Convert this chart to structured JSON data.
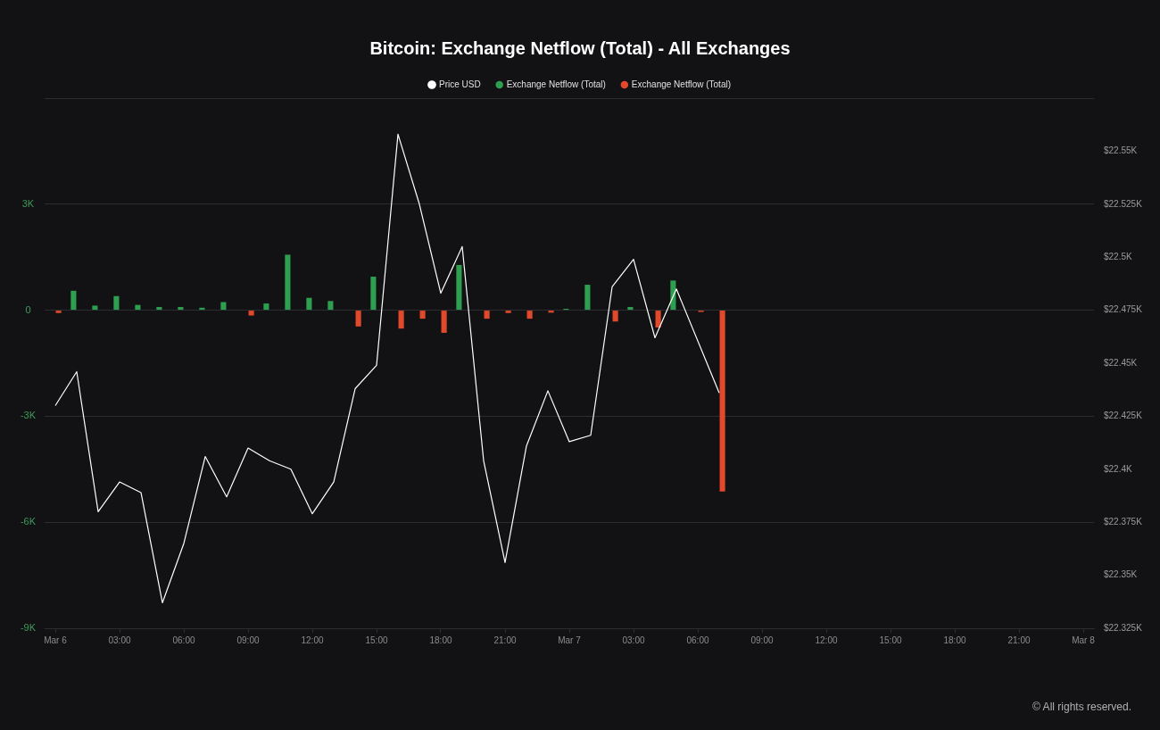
{
  "chart_data": {
    "type": "bar",
    "title": "Bitcoin: Exchange Netflow (Total) - All Exchanges",
    "x": [
      "--03-06T00:00",
      "--03-06T01:00",
      "--03-06T02:00",
      "--03-06T03:00",
      "--03-06T04:00",
      "--03-06T05:00",
      "--03-06T06:00",
      "--03-06T07:00",
      "--03-06T08:00",
      "--03-06T09:00",
      "--03-06T10:00",
      "--03-06T11:00",
      "--03-06T12:00",
      "--03-06T13:00",
      "--03-06T14:00",
      "--03-06T15:00",
      "--03-06T16:00",
      "--03-06T17:00",
      "--03-06T18:00",
      "--03-06T19:00",
      "--03-06T20:00",
      "--03-06T21:00",
      "--03-06T22:00",
      "--03-06T23:00",
      "--03-07T00:00",
      "--03-07T01:00",
      "--03-07T02:00",
      "--03-07T03:00",
      "--03-07T04:00",
      "--03-07T05:00",
      "--03-07T06:00",
      "--03-07T07:00"
    ],
    "series": [
      {
        "name": "Price USD",
        "type": "line",
        "axis": "y2",
        "color": "#ffffff",
        "x": [
          "--03-06T00:00",
          "--03-06T01:00",
          "--03-06T02:00",
          "--03-06T03:00",
          "--03-06T04:00",
          "--03-06T05:00",
          "--03-06T06:00",
          "--03-06T07:00",
          "--03-06T08:00",
          "--03-06T09:00",
          "--03-06T10:00",
          "--03-06T11:00",
          "--03-06T12:00",
          "--03-06T13:00",
          "--03-06T14:00",
          "--03-06T15:00",
          "--03-06T16:00",
          "--03-06T17:00",
          "--03-06T18:00",
          "--03-06T19:00",
          "--03-06T20:00",
          "--03-06T21:00",
          "--03-06T22:00",
          "--03-06T23:00",
          "--03-07T00:00",
          "--03-07T01:00",
          "--03-07T02:00",
          "--03-07T03:00",
          "--03-07T04:00",
          "--03-07T05:00",
          "--03-07T07:00"
        ],
        "values": [
          22430,
          22446,
          22380,
          22394,
          22389,
          22337,
          22365,
          22406,
          22387,
          22410,
          22404,
          22400,
          22379,
          22394,
          22438,
          22449,
          22558,
          22525,
          22483,
          22505,
          22404,
          22356,
          22411,
          22437,
          22413,
          22416,
          22486,
          22499,
          22462,
          22485,
          22436
        ]
      },
      {
        "name": "Exchange Netflow (Total)",
        "color": "#2e9f4f",
        "values": [
          null,
          550,
          130,
          400,
          150,
          90,
          90,
          70,
          230,
          null,
          190,
          1570,
          350,
          260,
          null,
          950,
          null,
          null,
          null,
          1280,
          null,
          null,
          null,
          null,
          40,
          720,
          null,
          90,
          null,
          840,
          null,
          null
        ]
      },
      {
        "name": "Exchange Netflow (Total)",
        "color": "#e2492a",
        "values": [
          -80,
          null,
          null,
          null,
          null,
          null,
          null,
          null,
          null,
          -150,
          null,
          null,
          null,
          null,
          -460,
          null,
          -520,
          -240,
          -640,
          null,
          -240,
          -80,
          -240,
          -70,
          null,
          null,
          -320,
          null,
          -490,
          null,
          -50,
          -5130
        ]
      }
    ],
    "xlim": [
      "--03-05T23:30",
      "--03-08T00:30"
    ],
    "xticks": [
      {
        "value": "--03-06T00:00",
        "label": "Mar 6"
      },
      {
        "value": "--03-06T03:00",
        "label": "03:00"
      },
      {
        "value": "--03-06T06:00",
        "label": "06:00"
      },
      {
        "value": "--03-06T09:00",
        "label": "09:00"
      },
      {
        "value": "--03-06T12:00",
        "label": "12:00"
      },
      {
        "value": "--03-06T15:00",
        "label": "15:00"
      },
      {
        "value": "--03-06T18:00",
        "label": "18:00"
      },
      {
        "value": "--03-06T21:00",
        "label": "21:00"
      },
      {
        "value": "--03-07T00:00",
        "label": "Mar 7"
      },
      {
        "value": "--03-07T03:00",
        "label": "03:00"
      },
      {
        "value": "--03-07T06:00",
        "label": "06:00"
      },
      {
        "value": "--03-07T09:00",
        "label": "09:00"
      },
      {
        "value": "--03-07T12:00",
        "label": "12:00"
      },
      {
        "value": "--03-07T15:00",
        "label": "15:00"
      },
      {
        "value": "--03-07T18:00",
        "label": "18:00"
      },
      {
        "value": "--03-07T21:00",
        "label": "21:00"
      },
      {
        "value": "--03-08T00:00",
        "label": "Mar 8"
      }
    ],
    "ylim": [
      -9000,
      6000
    ],
    "yticks": [
      {
        "value": -9000,
        "label": "-9K"
      },
      {
        "value": -6000,
        "label": "-6K"
      },
      {
        "value": -3000,
        "label": "-3K"
      },
      0,
      {
        "value": 3000,
        "label": "3K"
      },
      {
        "value": 6000,
        "label": null
      }
    ],
    "y2lim": [
      22325,
      22575
    ],
    "y2ticks": [
      {
        "value": 22325,
        "label": "$22.325K"
      },
      {
        "value": 22350,
        "label": "$22.35K"
      },
      {
        "value": 22375,
        "label": "$22.375K"
      },
      {
        "value": 22400,
        "label": "$22.4K"
      },
      {
        "value": 22425,
        "label": "$22.425K"
      },
      {
        "value": 22450,
        "label": "$22.45K"
      },
      {
        "value": 22475,
        "label": "$22.475K"
      },
      {
        "value": 22500,
        "label": "$22.5K"
      },
      {
        "value": 22525,
        "label": "$22.525K"
      },
      {
        "value": 22550,
        "label": "$22.55K"
      }
    ],
    "grid": "y",
    "legend": "top",
    "marker": "none",
    "annotations": [
      "© All rights reserved."
    ]
  }
}
